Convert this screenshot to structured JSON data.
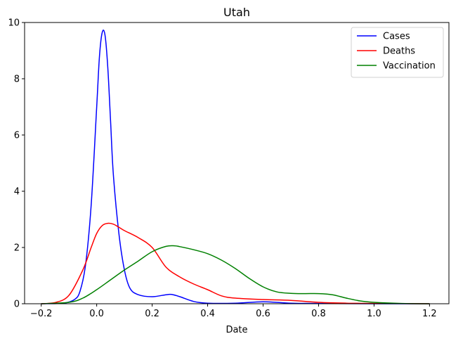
{
  "chart_data": {
    "type": "line",
    "title": "Utah",
    "xlabel": "Date",
    "ylabel": "",
    "xlim": [
      -0.26,
      1.27
    ],
    "ylim": [
      0,
      10
    ],
    "xticks": [
      -0.2,
      0.0,
      0.2,
      0.4,
      0.6,
      0.8,
      1.0,
      1.2
    ],
    "xtick_labels": [
      "−0.2",
      "0.0",
      "0.2",
      "0.4",
      "0.6",
      "0.8",
      "1.0",
      "1.2"
    ],
    "yticks": [
      0,
      2,
      4,
      6,
      8,
      10
    ],
    "ytick_labels": [
      "0",
      "2",
      "4",
      "6",
      "8",
      "10"
    ],
    "grid": false,
    "legend_position": "top-right",
    "series": [
      {
        "name": "Cases",
        "color": "#0000ff",
        "x": [
          -0.2,
          -0.12,
          -0.08,
          -0.06,
          -0.04,
          -0.02,
          0.0,
          0.01,
          0.02,
          0.03,
          0.04,
          0.05,
          0.06,
          0.08,
          0.1,
          0.12,
          0.15,
          0.2,
          0.25,
          0.27,
          0.3,
          0.35,
          0.4,
          0.5,
          0.6,
          0.7,
          0.8,
          1.0,
          1.2
        ],
        "y": [
          0,
          0.02,
          0.15,
          0.45,
          1.4,
          3.5,
          7.0,
          8.8,
          9.65,
          9.55,
          8.4,
          6.5,
          4.6,
          2.5,
          1.2,
          0.55,
          0.32,
          0.25,
          0.32,
          0.33,
          0.25,
          0.08,
          0.02,
          0.02,
          0.07,
          0.02,
          0.01,
          0.0,
          0.0
        ]
      },
      {
        "name": "Deaths",
        "color": "#ff0000",
        "x": [
          -0.2,
          -0.15,
          -0.1,
          -0.05,
          -0.02,
          0.0,
          0.02,
          0.04,
          0.06,
          0.08,
          0.1,
          0.15,
          0.2,
          0.25,
          0.3,
          0.35,
          0.4,
          0.45,
          0.5,
          0.6,
          0.7,
          0.8,
          0.9,
          1.0,
          1.2
        ],
        "y": [
          0.0,
          0.04,
          0.3,
          1.2,
          2.0,
          2.5,
          2.78,
          2.86,
          2.83,
          2.72,
          2.6,
          2.35,
          2.0,
          1.3,
          0.95,
          0.7,
          0.5,
          0.28,
          0.2,
          0.15,
          0.12,
          0.05,
          0.02,
          0.01,
          0.0
        ]
      },
      {
        "name": "Vaccination",
        "color": "#008000",
        "x": [
          -0.2,
          -0.1,
          -0.05,
          0.0,
          0.05,
          0.1,
          0.15,
          0.2,
          0.25,
          0.28,
          0.3,
          0.35,
          0.4,
          0.45,
          0.5,
          0.55,
          0.6,
          0.65,
          0.7,
          0.75,
          0.8,
          0.85,
          0.9,
          0.95,
          1.0,
          1.1,
          1.2
        ],
        "y": [
          0.0,
          0.05,
          0.2,
          0.5,
          0.85,
          1.2,
          1.52,
          1.85,
          2.04,
          2.06,
          2.03,
          1.92,
          1.78,
          1.55,
          1.25,
          0.9,
          0.6,
          0.42,
          0.37,
          0.36,
          0.36,
          0.32,
          0.2,
          0.1,
          0.05,
          0.01,
          0.0
        ]
      }
    ]
  }
}
